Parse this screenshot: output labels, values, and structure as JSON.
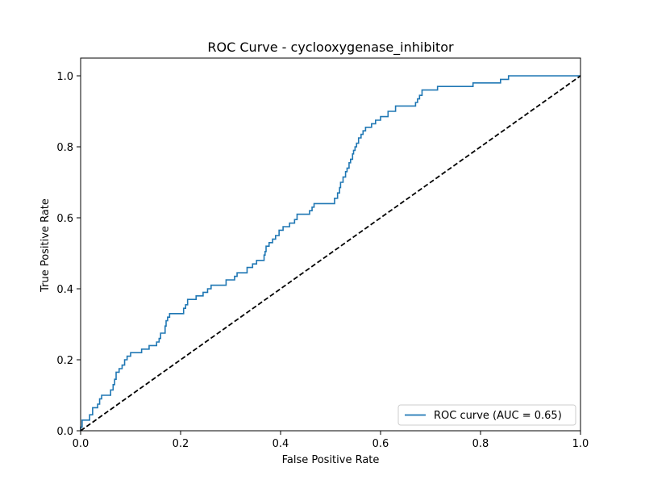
{
  "chart_data": {
    "type": "line",
    "title": "ROC Curve - cyclooxygenase_inhibitor",
    "xlabel": "False Positive Rate",
    "ylabel": "True Positive Rate",
    "xlim": [
      0.0,
      1.0
    ],
    "ylim": [
      0.0,
      1.05
    ],
    "xticks": [
      "0.0",
      "0.2",
      "0.4",
      "0.6",
      "0.8",
      "1.0"
    ],
    "yticks": [
      "0.0",
      "0.2",
      "0.4",
      "0.6",
      "0.8",
      "1.0"
    ],
    "grid": false,
    "legend_position": "lower-right",
    "series": [
      {
        "name": "ROC curve (AUC = 0.65)",
        "color": "#1f77b4",
        "style": "solid",
        "points": [
          [
            0.0,
            0.0
          ],
          [
            0.0,
            0.01
          ],
          [
            0.003,
            0.01
          ],
          [
            0.003,
            0.03
          ],
          [
            0.018,
            0.03
          ],
          [
            0.018,
            0.045
          ],
          [
            0.024,
            0.045
          ],
          [
            0.024,
            0.065
          ],
          [
            0.034,
            0.065
          ],
          [
            0.034,
            0.075
          ],
          [
            0.038,
            0.075
          ],
          [
            0.038,
            0.09
          ],
          [
            0.042,
            0.09
          ],
          [
            0.042,
            0.1
          ],
          [
            0.06,
            0.1
          ],
          [
            0.06,
            0.115
          ],
          [
            0.065,
            0.115
          ],
          [
            0.065,
            0.13
          ],
          [
            0.068,
            0.13
          ],
          [
            0.068,
            0.145
          ],
          [
            0.071,
            0.145
          ],
          [
            0.071,
            0.165
          ],
          [
            0.077,
            0.165
          ],
          [
            0.077,
            0.175
          ],
          [
            0.083,
            0.175
          ],
          [
            0.083,
            0.185
          ],
          [
            0.088,
            0.185
          ],
          [
            0.088,
            0.2
          ],
          [
            0.093,
            0.2
          ],
          [
            0.093,
            0.21
          ],
          [
            0.1,
            0.21
          ],
          [
            0.1,
            0.22
          ],
          [
            0.122,
            0.22
          ],
          [
            0.122,
            0.23
          ],
          [
            0.137,
            0.23
          ],
          [
            0.137,
            0.24
          ],
          [
            0.152,
            0.24
          ],
          [
            0.152,
            0.25
          ],
          [
            0.157,
            0.25
          ],
          [
            0.157,
            0.26
          ],
          [
            0.16,
            0.26
          ],
          [
            0.16,
            0.275
          ],
          [
            0.169,
            0.275
          ],
          [
            0.169,
            0.295
          ],
          [
            0.171,
            0.295
          ],
          [
            0.171,
            0.31
          ],
          [
            0.174,
            0.31
          ],
          [
            0.174,
            0.32
          ],
          [
            0.178,
            0.32
          ],
          [
            0.178,
            0.33
          ],
          [
            0.206,
            0.33
          ],
          [
            0.206,
            0.345
          ],
          [
            0.21,
            0.345
          ],
          [
            0.21,
            0.355
          ],
          [
            0.214,
            0.355
          ],
          [
            0.214,
            0.37
          ],
          [
            0.231,
            0.37
          ],
          [
            0.231,
            0.38
          ],
          [
            0.245,
            0.38
          ],
          [
            0.245,
            0.39
          ],
          [
            0.254,
            0.39
          ],
          [
            0.254,
            0.4
          ],
          [
            0.261,
            0.4
          ],
          [
            0.261,
            0.41
          ],
          [
            0.291,
            0.41
          ],
          [
            0.291,
            0.425
          ],
          [
            0.308,
            0.425
          ],
          [
            0.308,
            0.435
          ],
          [
            0.313,
            0.435
          ],
          [
            0.313,
            0.445
          ],
          [
            0.333,
            0.445
          ],
          [
            0.333,
            0.46
          ],
          [
            0.344,
            0.46
          ],
          [
            0.344,
            0.47
          ],
          [
            0.352,
            0.47
          ],
          [
            0.352,
            0.48
          ],
          [
            0.367,
            0.48
          ],
          [
            0.367,
            0.495
          ],
          [
            0.369,
            0.495
          ],
          [
            0.369,
            0.505
          ],
          [
            0.371,
            0.505
          ],
          [
            0.371,
            0.52
          ],
          [
            0.377,
            0.52
          ],
          [
            0.377,
            0.53
          ],
          [
            0.384,
            0.53
          ],
          [
            0.384,
            0.54
          ],
          [
            0.39,
            0.54
          ],
          [
            0.39,
            0.55
          ],
          [
            0.397,
            0.55
          ],
          [
            0.397,
            0.565
          ],
          [
            0.405,
            0.565
          ],
          [
            0.405,
            0.575
          ],
          [
            0.418,
            0.575
          ],
          [
            0.418,
            0.585
          ],
          [
            0.428,
            0.585
          ],
          [
            0.428,
            0.595
          ],
          [
            0.433,
            0.595
          ],
          [
            0.433,
            0.61
          ],
          [
            0.458,
            0.61
          ],
          [
            0.458,
            0.62
          ],
          [
            0.463,
            0.62
          ],
          [
            0.463,
            0.63
          ],
          [
            0.467,
            0.63
          ],
          [
            0.467,
            0.64
          ],
          [
            0.508,
            0.64
          ],
          [
            0.508,
            0.655
          ],
          [
            0.514,
            0.655
          ],
          [
            0.514,
            0.67
          ],
          [
            0.518,
            0.67
          ],
          [
            0.518,
            0.685
          ],
          [
            0.52,
            0.685
          ],
          [
            0.52,
            0.7
          ],
          [
            0.525,
            0.7
          ],
          [
            0.525,
            0.715
          ],
          [
            0.53,
            0.715
          ],
          [
            0.53,
            0.73
          ],
          [
            0.533,
            0.73
          ],
          [
            0.533,
            0.74
          ],
          [
            0.537,
            0.74
          ],
          [
            0.537,
            0.755
          ],
          [
            0.54,
            0.755
          ],
          [
            0.54,
            0.765
          ],
          [
            0.544,
            0.765
          ],
          [
            0.544,
            0.78
          ],
          [
            0.546,
            0.78
          ],
          [
            0.546,
            0.79
          ],
          [
            0.549,
            0.79
          ],
          [
            0.549,
            0.8
          ],
          [
            0.552,
            0.8
          ],
          [
            0.552,
            0.81
          ],
          [
            0.556,
            0.81
          ],
          [
            0.556,
            0.825
          ],
          [
            0.561,
            0.825
          ],
          [
            0.561,
            0.835
          ],
          [
            0.565,
            0.835
          ],
          [
            0.565,
            0.845
          ],
          [
            0.57,
            0.845
          ],
          [
            0.57,
            0.855
          ],
          [
            0.582,
            0.855
          ],
          [
            0.582,
            0.865
          ],
          [
            0.59,
            0.865
          ],
          [
            0.59,
            0.875
          ],
          [
            0.6,
            0.875
          ],
          [
            0.6,
            0.885
          ],
          [
            0.615,
            0.885
          ],
          [
            0.615,
            0.9
          ],
          [
            0.63,
            0.9
          ],
          [
            0.63,
            0.915
          ],
          [
            0.67,
            0.915
          ],
          [
            0.67,
            0.925
          ],
          [
            0.674,
            0.925
          ],
          [
            0.674,
            0.935
          ],
          [
            0.678,
            0.935
          ],
          [
            0.678,
            0.945
          ],
          [
            0.683,
            0.945
          ],
          [
            0.683,
            0.96
          ],
          [
            0.714,
            0.96
          ],
          [
            0.714,
            0.97
          ],
          [
            0.785,
            0.97
          ],
          [
            0.785,
            0.98
          ],
          [
            0.84,
            0.98
          ],
          [
            0.84,
            0.99
          ],
          [
            0.856,
            0.99
          ],
          [
            0.856,
            1.0
          ],
          [
            1.0,
            1.0
          ]
        ]
      },
      {
        "name": "",
        "color": "#000000",
        "style": "dashed",
        "points": [
          [
            0.0,
            0.0
          ],
          [
            1.0,
            1.0
          ]
        ]
      }
    ]
  }
}
